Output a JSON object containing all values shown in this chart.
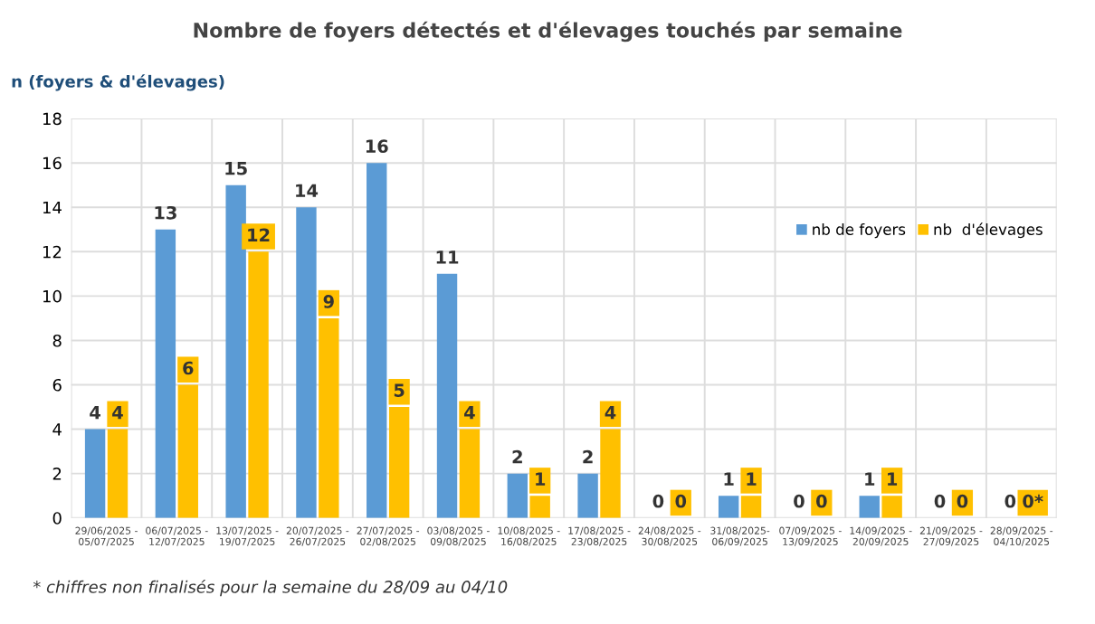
{
  "chart_data": {
    "type": "bar",
    "title": "Nombre de foyers détectés et d'élevages touchés par semaine",
    "ylabel": "n (foyers & d'élevages)",
    "categories": [
      "29/06/2025 -\n05/07/2025",
      "06/07/2025 -\n12/07/2025",
      "13/07/2025 -\n19/07/2025",
      "20/07/2025 -\n26/07/2025",
      "27/07/2025 -\n02/08/2025",
      "03/08/2025 -\n09/08/2025",
      "10/08/2025 -\n16/08/2025",
      "17/08/2025 -\n23/08/2025",
      "24/08/2025 -\n30/08/2025",
      "31/08/2025-\n06/09/2025",
      "07/09/2025 -\n13/09/2025",
      "14/09/2025 -\n20/09/2025",
      "21/09/2025 -\n27/09/2025",
      "28/09/2025 -\n04/10/2025"
    ],
    "series": [
      {
        "name": "nb de foyers",
        "color": "#5b9bd5",
        "values": [
          4,
          13,
          15,
          14,
          16,
          11,
          2,
          2,
          0,
          1,
          0,
          1,
          0,
          0
        ],
        "value_labels": [
          "4",
          "13",
          "15",
          "14",
          "16",
          "11",
          "2",
          "2",
          "0",
          "1",
          "0",
          "1",
          "0",
          "0"
        ]
      },
      {
        "name": "nb  d'élevages",
        "color": "#ffc000",
        "values": [
          4,
          6,
          12,
          9,
          5,
          4,
          1,
          4,
          0,
          1,
          0,
          1,
          0,
          0
        ],
        "value_labels": [
          "4",
          "6",
          "12",
          "9",
          "5",
          "4",
          "1",
          "4",
          "0",
          "1",
          "0",
          "1",
          "0",
          "0*"
        ]
      }
    ],
    "ylim": [
      0,
      18
    ],
    "yticks": [
      0,
      2,
      4,
      6,
      8,
      10,
      12,
      14,
      16,
      18
    ],
    "grid": true,
    "legend": "right",
    "annotations": [
      "* chiffres non finalisés pour la semaine du 28/09 au 04/10"
    ]
  }
}
